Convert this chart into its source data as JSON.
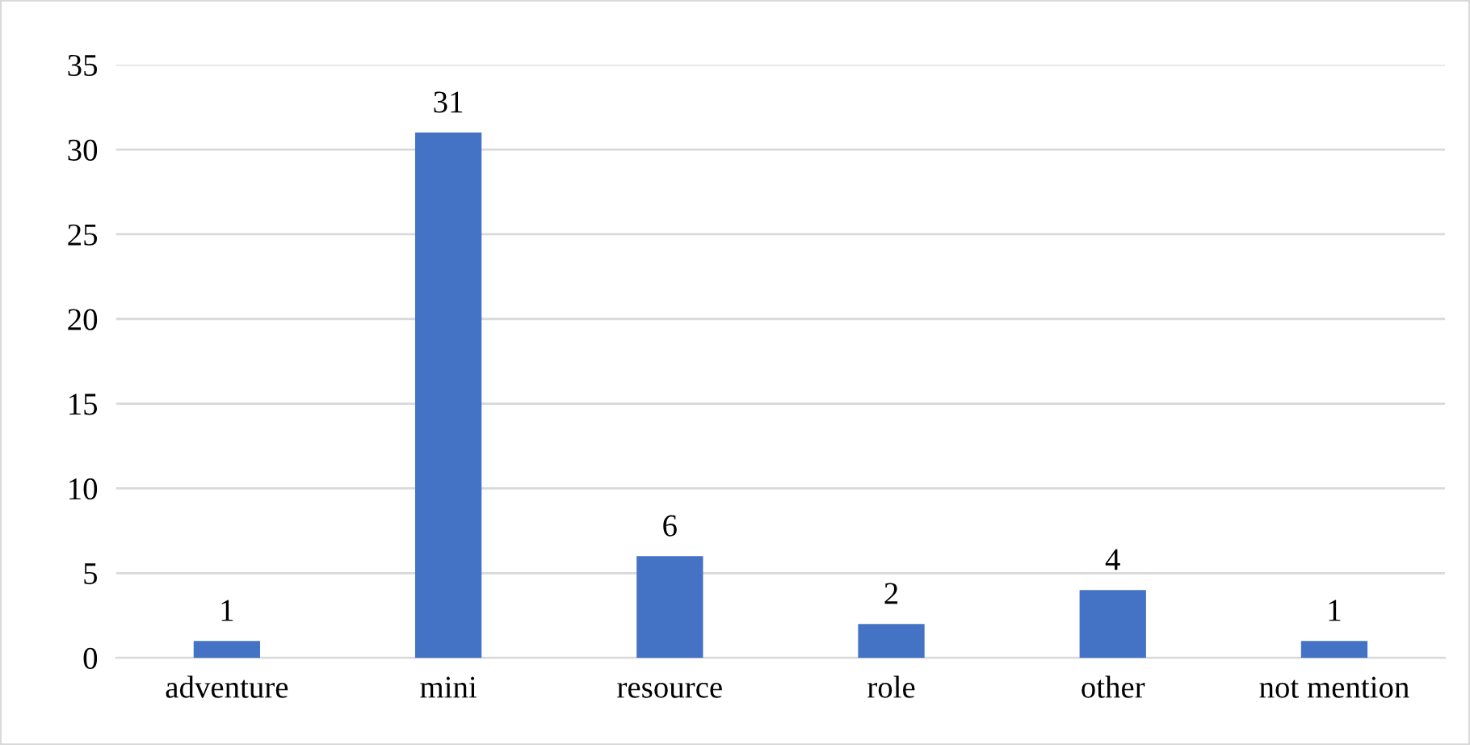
{
  "chart_data": {
    "type": "bar",
    "categories": [
      "adventure",
      "mini",
      "resource",
      "role",
      "other",
      "not mention"
    ],
    "values": [
      1,
      31,
      6,
      2,
      4,
      1
    ],
    "color": "#4472c4",
    "ylim": [
      0,
      35
    ],
    "yticks": [
      0,
      5,
      10,
      15,
      20,
      25,
      30,
      35
    ],
    "grid": "y",
    "data_labels": true
  }
}
